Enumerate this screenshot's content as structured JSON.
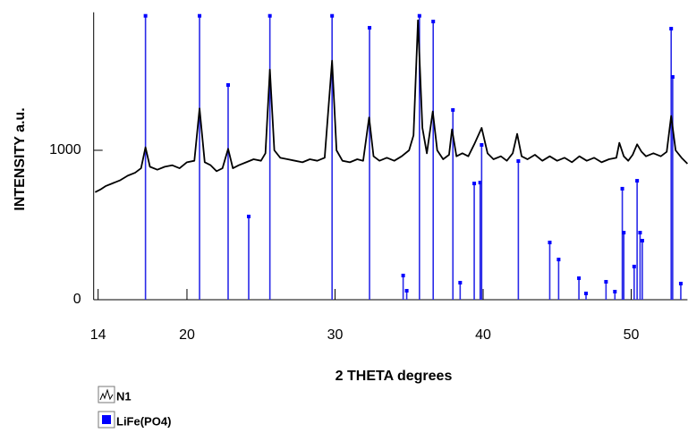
{
  "chart_data": {
    "type": "line",
    "xlabel": "2 THETA degrees",
    "ylabel": "INTENSITY a.u.",
    "xlim": [
      13.7,
      53.8
    ],
    "ylim": [
      0,
      1900
    ],
    "xticks": [
      14,
      20,
      30,
      40,
      50
    ],
    "yticks": [
      0,
      1000
    ],
    "legend": "bottom-left",
    "series": [
      {
        "name": "N1",
        "type": "line",
        "color": "#000000",
        "x": [
          13.8,
          14.2,
          14.5,
          15,
          15.5,
          16,
          16.5,
          16.9,
          17.2,
          17.5,
          18,
          18.5,
          19,
          19.5,
          20,
          20.5,
          20.85,
          21.2,
          21.6,
          22,
          22.4,
          22.78,
          23.1,
          23.5,
          24,
          24.5,
          25,
          25.3,
          25.6,
          25.9,
          26.3,
          26.8,
          27.3,
          27.8,
          28.3,
          28.8,
          29.3,
          29.8,
          30.1,
          30.5,
          31,
          31.5,
          31.9,
          32.3,
          32.6,
          33,
          33.5,
          34,
          34.5,
          35,
          35.3,
          35.6,
          35.9,
          36.2,
          36.6,
          36.9,
          37.3,
          37.7,
          37.9,
          38.2,
          38.6,
          39,
          39.4,
          39.9,
          40.3,
          40.7,
          41.2,
          41.6,
          42,
          42.3,
          42.6,
          43,
          43.5,
          44,
          44.5,
          45,
          45.5,
          46,
          46.5,
          47,
          47.5,
          48,
          48.5,
          49,
          49.2,
          49.5,
          49.8,
          50.1,
          50.4,
          50.7,
          51,
          51.5,
          52,
          52.4,
          52.7,
          53,
          53.4,
          53.8
        ],
        "values": [
          720,
          740,
          760,
          780,
          800,
          830,
          850,
          880,
          1020,
          890,
          870,
          890,
          900,
          880,
          920,
          930,
          1280,
          920,
          900,
          860,
          880,
          1010,
          880,
          900,
          920,
          940,
          930,
          980,
          1540,
          1000,
          950,
          940,
          930,
          920,
          940,
          930,
          950,
          1600,
          1000,
          930,
          920,
          940,
          930,
          1220,
          960,
          930,
          950,
          930,
          960,
          1000,
          1100,
          1870,
          1150,
          980,
          1260,
          1000,
          940,
          970,
          1140,
          960,
          980,
          960,
          1040,
          1150,
          980,
          940,
          960,
          930,
          980,
          1110,
          960,
          940,
          970,
          930,
          960,
          930,
          950,
          920,
          960,
          930,
          950,
          920,
          940,
          950,
          1050,
          960,
          930,
          970,
          1040,
          990,
          960,
          980,
          960,
          990,
          1230,
          1000,
          950,
          910
        ]
      },
      {
        "name": "LiFe(PO4)",
        "type": "stem",
        "color": "#2a2ae8",
        "x": [
          17.2,
          20.85,
          22.78,
          24.17,
          25.6,
          29.8,
          32.33,
          34.6,
          34.84,
          35.7,
          36.63,
          37.96,
          38.45,
          39.4,
          39.8,
          39.9,
          42.38,
          44.5,
          45.1,
          46.47,
          46.95,
          48.3,
          48.9,
          49.4,
          49.5,
          50.2,
          50.4,
          50.6,
          50.75,
          52.7,
          52.8,
          53.35
        ],
        "values": [
          1900,
          1900,
          1437,
          557,
          1900,
          1900,
          1820,
          162,
          60,
          1900,
          1862,
          1270,
          114,
          778,
          784,
          1036,
          928,
          383,
          269,
          144,
          42,
          120,
          54,
          743,
          449,
          222,
          796,
          449,
          395,
          1814,
          1491,
          108
        ]
      }
    ]
  }
}
